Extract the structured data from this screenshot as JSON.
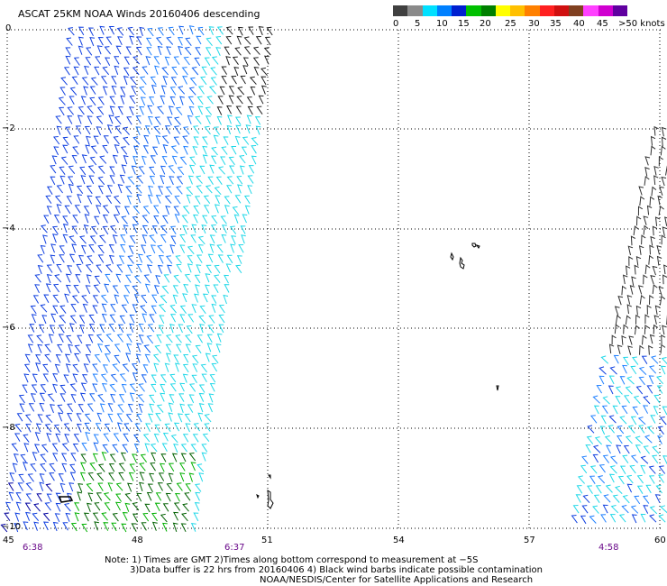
{
  "title": "ASCAT 25KM NOAA Winds 20160406 descending",
  "legend": {
    "colors": [
      "#404040",
      "#8a8a8a",
      "#00e0ff",
      "#0080ff",
      "#0020d0",
      "#00c000",
      "#008000",
      "#ffff00",
      "#ffc000",
      "#ff8000",
      "#ff2020",
      "#d01010",
      "#804020",
      "#ff40ff",
      "#d000d0",
      "#6000a0"
    ],
    "labels": [
      "0",
      "5",
      "10",
      "15",
      "20",
      "25",
      "30",
      "35",
      "40",
      "45",
      ">50 knots"
    ]
  },
  "axes": {
    "lat_labels": [
      "0",
      "−2",
      "−4",
      "−6",
      "−8",
      "−10"
    ],
    "lon_labels": [
      "45",
      "48",
      "51",
      "54",
      "57",
      "60"
    ]
  },
  "pass_times": [
    "6:38",
    "6:37",
    "4:58"
  ],
  "notes": [
    "Note: 1) Times are GMT 2)Times along bottom correspond to measurement at −5S",
    "3)Data buffer is 22 hrs from 20160406 4) Black wind barbs indicate possible contamination",
    "NOAA/NESDIS/Center for Satellite Applications and Research"
  ]
}
